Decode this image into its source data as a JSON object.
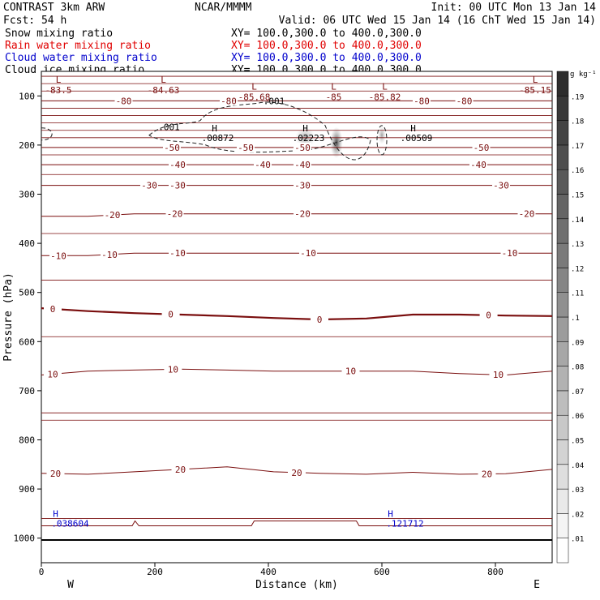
{
  "header": {
    "title_left": "CONTRAST  3km ARW",
    "title_center": "NCAR/MMMM",
    "init": "Init: 00 UTC Mon 13 Jan 14",
    "fcst": "Fcst:   54 h",
    "valid": "Valid: 06 UTC Wed 15 Jan 14 (16 ChT Wed 15 Jan 14)"
  },
  "legend": [
    {
      "label": "Snow mixing ratio",
      "xy": "XY= 100.0,300.0 to 400.0,300.0",
      "color": "#000000"
    },
    {
      "label": "Rain water mixing ratio",
      "xy": "XY= 100.0,300.0 to 400.0,300.0",
      "color": "#e00000"
    },
    {
      "label": "Cloud water mixing ratio",
      "xy": "XY= 100.0,300.0 to 400.0,300.0",
      "color": "#0000cc"
    },
    {
      "label": "Cloud ice mixing ratio",
      "xy": "XY= 100.0,300.0 to 400.0,300.0",
      "color": "#000000"
    }
  ],
  "colorbar": {
    "unit": "g kg⁻¹",
    "ticks": [
      ".01",
      ".02",
      ".03",
      ".04",
      ".05",
      ".06",
      ".07",
      ".08",
      ".09",
      ".1",
      ".11",
      ".12",
      ".13",
      ".14",
      ".15",
      ".16",
      ".17",
      ".18",
      ".19"
    ]
  },
  "chart_data": {
    "type": "contour",
    "xlabel": "Distance (km)",
    "ylabel": "Pressure (hPa)",
    "xlim": [
      0,
      900
    ],
    "ylim": [
      1050,
      50
    ],
    "xticks": [
      0,
      200,
      400,
      600,
      800
    ],
    "yticks": [
      100,
      200,
      300,
      400,
      500,
      600,
      700,
      800,
      900,
      1000
    ],
    "x_end_labels": {
      "left": "W",
      "right": "E"
    },
    "temperature_contours": [
      {
        "value": 20,
        "p": [
          868,
          870,
          865,
          860,
          855,
          865,
          868,
          870,
          866,
          870,
          869,
          860
        ],
        "labels": [
          {
            "text": "20",
            "x": 25
          },
          {
            "text": "20",
            "x": 245
          },
          {
            "text": "20",
            "x": 450
          },
          {
            "text": "20",
            "x": 785
          }
        ]
      },
      {
        "value": 10,
        "p": [
          668,
          660,
          658,
          656,
          658,
          660,
          660,
          660,
          660,
          665,
          668,
          660
        ],
        "labels": [
          {
            "text": "10",
            "x": 20
          },
          {
            "text": "10",
            "x": 232
          },
          {
            "text": "10",
            "x": 545
          },
          {
            "text": "10",
            "x": 805
          }
        ]
      },
      {
        "value": 0,
        "p": [
          532,
          538,
          542,
          545,
          548,
          552,
          555,
          553,
          545,
          545,
          547,
          548
        ],
        "labels": [
          {
            "text": "0",
            "x": 20
          },
          {
            "text": "0",
            "x": 228
          },
          {
            "text": "0",
            "x": 490
          },
          {
            "text": "0",
            "x": 788
          }
        ]
      },
      {
        "value": -10,
        "p": [
          425,
          425,
          420,
          420,
          420,
          420,
          420,
          420,
          420,
          420,
          420,
          420
        ],
        "labels": [
          {
            "text": "-10",
            "x": 30
          },
          {
            "text": "-10",
            "x": 120
          },
          {
            "text": "-10",
            "x": 240
          },
          {
            "text": "-10",
            "x": 470
          },
          {
            "text": "-10",
            "x": 825
          }
        ]
      },
      {
        "value": -20,
        "p": [
          345,
          345,
          340,
          340,
          340,
          340,
          340,
          340,
          340,
          340,
          340,
          340
        ],
        "labels": [
          {
            "text": "-20",
            "x": 125
          },
          {
            "text": "-20",
            "x": 235
          },
          {
            "text": "-20",
            "x": 460
          },
          {
            "text": "-20",
            "x": 855
          }
        ]
      },
      {
        "value": -30,
        "p": [
          282,
          282,
          282,
          282,
          282,
          282,
          282,
          282,
          282,
          282,
          282,
          282
        ],
        "labels": [
          {
            "text": "-30",
            "x": 190
          },
          {
            "text": "-30",
            "x": 240
          },
          {
            "text": "-30",
            "x": 460
          },
          {
            "text": "-30",
            "x": 810
          }
        ]
      },
      {
        "value": -40,
        "p": [
          240,
          240,
          240,
          240,
          240,
          240,
          240,
          240,
          240,
          240,
          240,
          240
        ],
        "labels": [
          {
            "text": "-40",
            "x": 240
          },
          {
            "text": "-40",
            "x": 390
          },
          {
            "text": "-40",
            "x": 460
          },
          {
            "text": "-40",
            "x": 770
          }
        ]
      },
      {
        "value": -50,
        "p": [
          205,
          205,
          205,
          205,
          205,
          205,
          205,
          205,
          205,
          205,
          205,
          205
        ],
        "labels": [
          {
            "text": "-50",
            "x": 230
          },
          {
            "text": "-50",
            "x": 360
          },
          {
            "text": "-50",
            "x": 460
          },
          {
            "text": "-50",
            "x": 775
          }
        ]
      },
      {
        "value": -80,
        "p": [
          110,
          110,
          110,
          110,
          110,
          110,
          110,
          110,
          110,
          110,
          110,
          110
        ],
        "labels": [
          {
            "text": "-80",
            "x": 145
          },
          {
            "text": "-80",
            "x": 330
          },
          {
            "text": "-80",
            "x": 670
          },
          {
            "text": "-80",
            "x": 745
          }
        ]
      }
    ],
    "lows": [
      {
        "label": "L",
        "value": "-83.5",
        "x": 30,
        "p": 78
      },
      {
        "label": "L",
        "value": "-84.63",
        "x": 215,
        "p": 78
      },
      {
        "label": "L",
        "value": "-85.68",
        "x": 375,
        "p": 92
      },
      {
        "label": "L",
        "value": "-85",
        "x": 515,
        "p": 92
      },
      {
        "label": "L",
        "value": "-85.82",
        "x": 605,
        "p": 92
      },
      {
        "label": "L",
        "value": "-85.15",
        "x": 870,
        "p": 78
      }
    ],
    "ice_maxima": [
      {
        "label": "H",
        "value": ".00872",
        "x": 305,
        "p": 175
      },
      {
        "label": "H",
        "value": ".02223",
        "x": 465,
        "p": 175
      },
      {
        "label": "H",
        "value": ".00509",
        "x": 655,
        "p": 175
      }
    ],
    "ice_contour_labels": [
      {
        "text": ".001",
        "x": 225,
        "p": 165
      },
      {
        "text": ".001",
        "x": 410,
        "p": 112
      }
    ],
    "cloudwater_maxima": [
      {
        "label": "H",
        "value": ".038604",
        "x": 25,
        "p": 960
      },
      {
        "label": "H",
        "value": ".121712",
        "x": 615,
        "p": 960
      }
    ],
    "shaded_cells": [
      {
        "x": 465,
        "p": 185,
        "w": 45,
        "h": 45,
        "v": 0.08
      },
      {
        "x": 520,
        "p": 195,
        "w": 28,
        "h": 70,
        "v": 0.16
      },
      {
        "x": 600,
        "p": 180,
        "w": 18,
        "h": 40,
        "v": 0.08
      }
    ]
  }
}
